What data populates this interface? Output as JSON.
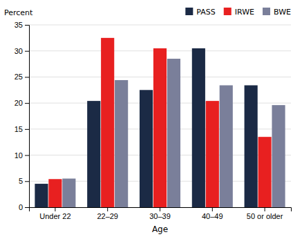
{
  "chart_data": {
    "type": "bar",
    "categories": [
      "Under 22",
      "22–29",
      "30–39",
      "40–49",
      "50 or older"
    ],
    "series": [
      {
        "name": "PASS",
        "color": "#1b2a45",
        "values": [
          4.5,
          20.4,
          22.5,
          30.5,
          23.4
        ]
      },
      {
        "name": "IRWE",
        "color": "#e82020",
        "values": [
          5.4,
          32.5,
          30.5,
          20.4,
          13.5
        ]
      },
      {
        "name": "BWE",
        "color": "#7a7f9a",
        "values": [
          5.5,
          24.4,
          28.5,
          23.4,
          19.6
        ]
      }
    ],
    "xlabel": "Age",
    "ylabel": "Percent",
    "ylim": [
      0,
      35
    ],
    "yticks": [
      0,
      5,
      10,
      15,
      20,
      25,
      30,
      35
    ],
    "grid": true,
    "legend": "upper right"
  }
}
